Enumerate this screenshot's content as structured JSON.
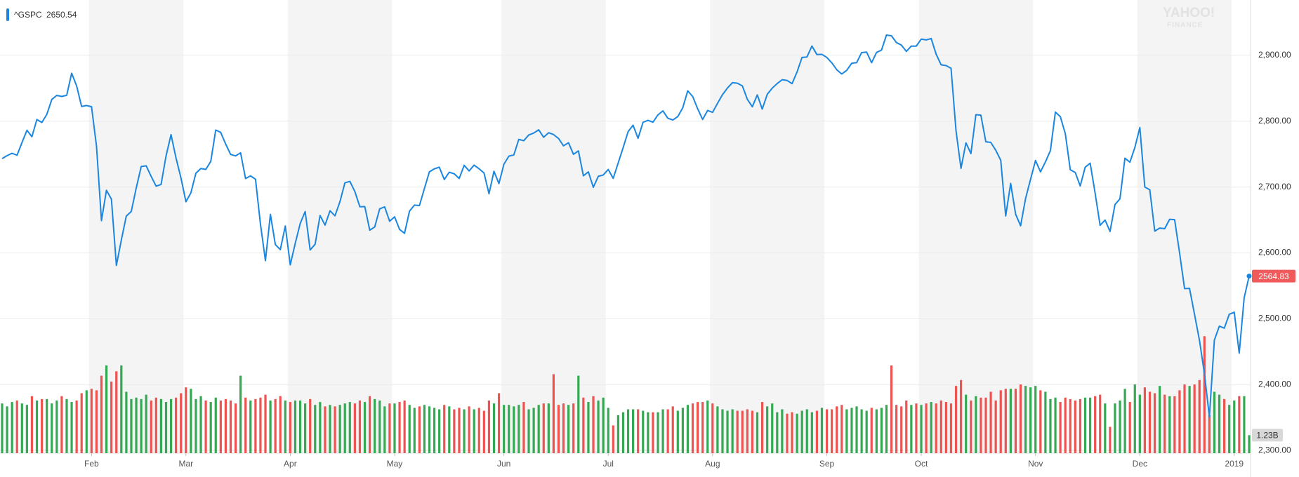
{
  "chart_data": {
    "type": "line",
    "legend_value": 2650.54,
    "watermark": [
      "YAHOO!",
      "FINANCE"
    ],
    "categories": [
      null,
      null,
      null,
      null,
      null,
      null,
      null,
      null,
      null,
      null,
      null,
      null,
      null,
      null,
      null,
      null,
      null,
      null,
      "Feb",
      null,
      null,
      null,
      null,
      null,
      null,
      null,
      null,
      null,
      null,
      null,
      null,
      null,
      null,
      null,
      null,
      null,
      null,
      "Mar",
      null,
      null,
      null,
      null,
      null,
      null,
      null,
      null,
      null,
      null,
      null,
      null,
      null,
      null,
      null,
      null,
      null,
      null,
      null,
      null,
      "Apr",
      null,
      null,
      null,
      null,
      null,
      null,
      null,
      null,
      null,
      null,
      null,
      null,
      null,
      null,
      null,
      null,
      null,
      null,
      null,
      null,
      "May",
      null,
      null,
      null,
      null,
      null,
      null,
      null,
      null,
      null,
      null,
      null,
      null,
      null,
      null,
      null,
      null,
      null,
      null,
      null,
      null,
      null,
      "Jun",
      null,
      null,
      null,
      null,
      null,
      null,
      null,
      null,
      null,
      null,
      null,
      null,
      null,
      null,
      null,
      null,
      null,
      null,
      null,
      null,
      "Jul",
      null,
      null,
      null,
      null,
      null,
      null,
      null,
      null,
      null,
      null,
      null,
      null,
      null,
      null,
      null,
      null,
      null,
      null,
      null,
      null,
      "Aug",
      null,
      null,
      null,
      null,
      null,
      null,
      null,
      null,
      null,
      null,
      null,
      null,
      null,
      null,
      null,
      null,
      null,
      null,
      null,
      null,
      null,
      null,
      "Sep",
      null,
      null,
      null,
      null,
      null,
      null,
      null,
      null,
      null,
      null,
      null,
      null,
      null,
      null,
      null,
      null,
      null,
      null,
      "Oct",
      null,
      null,
      null,
      null,
      null,
      null,
      null,
      null,
      null,
      null,
      null,
      null,
      null,
      null,
      null,
      null,
      null,
      null,
      null,
      null,
      null,
      null,
      "Nov",
      null,
      null,
      null,
      null,
      null,
      null,
      null,
      null,
      null,
      null,
      null,
      null,
      null,
      null,
      null,
      null,
      null,
      null,
      null,
      null,
      "Dec",
      null,
      null,
      null,
      null,
      null,
      null,
      null,
      null,
      null,
      null,
      null,
      null,
      null,
      null,
      null,
      null,
      null,
      null,
      "2019",
      null,
      null,
      null
    ],
    "series": [
      {
        "name": "^GSPC",
        "color": "#1a86e0",
        "values": [
          2743.15,
          2747.71,
          2751.29,
          2748.23,
          2767.56,
          2786.24,
          2776.42,
          2802.56,
          2798.03,
          2810.3,
          2832.97,
          2839.13,
          2837.54,
          2839.25,
          2872.87,
          2853.53,
          2822.43,
          2823.81,
          2821.98,
          2762.13,
          2648.94,
          2695.14,
          2681.66,
          2581.0,
          2619.55,
          2656.0,
          2662.94,
          2698.63,
          2731.2,
          2732.22,
          2716.26,
          2701.33,
          2703.96,
          2747.3,
          2779.6,
          2744.28,
          2713.83,
          2677.67,
          2691.25,
          2720.94,
          2728.12,
          2726.8,
          2738.97,
          2786.57,
          2783.02,
          2765.31,
          2749.48,
          2747.33,
          2752.01,
          2712.92,
          2716.94,
          2711.93,
          2643.69,
          2588.26,
          2658.55,
          2612.62,
          2605.0,
          2640.87,
          2581.88,
          2614.45,
          2644.69,
          2662.84,
          2604.47,
          2613.16,
          2656.87,
          2642.19,
          2663.99,
          2656.3,
          2677.84,
          2706.39,
          2708.64,
          2693.13,
          2670.14,
          2670.29,
          2634.56,
          2639.4,
          2666.94,
          2669.91,
          2648.05,
          2654.8,
          2635.67,
          2629.73,
          2663.42,
          2672.63,
          2671.92,
          2697.79,
          2723.07,
          2727.72,
          2730.13,
          2711.45,
          2722.46,
          2720.13,
          2712.97,
          2733.01,
          2724.44,
          2733.29,
          2727.76,
          2721.33,
          2689.86,
          2724.01,
          2705.27,
          2734.62,
          2746.87,
          2748.8,
          2772.35,
          2770.37,
          2779.03,
          2782.0,
          2786.85,
          2775.63,
          2782.49,
          2779.66,
          2773.75,
          2762.59,
          2767.32,
          2749.76,
          2754.88,
          2717.07,
          2723.06,
          2699.63,
          2716.31,
          2718.37,
          2726.71,
          2713.22,
          2736.61,
          2759.82,
          2784.17,
          2793.84,
          2774.02,
          2798.29,
          2801.31,
          2798.43,
          2809.55,
          2815.62,
          2804.49,
          2801.83,
          2806.98,
          2820.4,
          2846.07,
          2837.44,
          2818.82,
          2802.6,
          2816.29,
          2813.36,
          2827.22,
          2840.35,
          2850.4,
          2858.45,
          2857.7,
          2853.58,
          2833.28,
          2821.93,
          2839.96,
          2818.37,
          2840.69,
          2850.13,
          2857.05,
          2862.96,
          2861.82,
          2856.98,
          2874.69,
          2896.74,
          2897.52,
          2914.04,
          2901.13,
          2901.52,
          2896.72,
          2888.6,
          2878.05,
          2871.68,
          2877.13,
          2887.89,
          2888.92,
          2904.18,
          2904.98,
          2888.8,
          2904.31,
          2907.95,
          2930.75,
          2929.67,
          2919.37,
          2915.56,
          2905.97,
          2914.0,
          2913.98,
          2924.59,
          2923.43,
          2925.51,
          2901.61,
          2885.57,
          2884.43,
          2880.34,
          2785.68,
          2728.37,
          2767.13,
          2750.79,
          2809.92,
          2809.21,
          2768.78,
          2767.78,
          2755.88,
          2740.69,
          2656.1,
          2705.57,
          2658.69,
          2641.25,
          2682.63,
          2711.74,
          2740.37,
          2723.06,
          2738.31,
          2755.45,
          2813.89,
          2806.83,
          2781.01,
          2726.22,
          2722.18,
          2701.58,
          2730.2,
          2736.27,
          2690.73,
          2641.89,
          2649.93,
          2632.56,
          2673.45,
          2682.17,
          2743.79,
          2737.8,
          2760.17,
          2790.37,
          2700.06,
          2695.95,
          2633.08,
          2637.72,
          2636.78,
          2651.07,
          2650.54,
          2599.95,
          2545.94,
          2546.16,
          2506.96,
          2467.42,
          2416.62,
          2351.1,
          2467.7,
          2488.83,
          2485.74,
          2506.85,
          2510.03,
          2447.89,
          2531.94,
          2564.83
        ]
      }
    ],
    "last_value_color": "#f05a5a",
    "volume": {
      "up_color": "#35a853",
      "down_color": "#ef5350",
      "ylim": [
        0,
        31
      ],
      "last_label": "1.23B",
      "values": [
        3.4,
        3.2,
        3.5,
        3.6,
        3.4,
        3.3,
        3.9,
        3.6,
        3.7,
        3.7,
        3.4,
        3.6,
        3.9,
        3.7,
        3.5,
        3.6,
        4.1,
        4.3,
        4.4,
        4.3,
        5.3,
        6.0,
        4.9,
        5.6,
        6.0,
        4.2,
        3.7,
        3.8,
        3.7,
        4.0,
        3.6,
        3.8,
        3.7,
        3.5,
        3.7,
        3.8,
        4.1,
        4.5,
        4.4,
        3.7,
        3.9,
        3.6,
        3.5,
        3.8,
        3.6,
        3.7,
        3.6,
        3.4,
        5.3,
        3.8,
        3.6,
        3.7,
        3.8,
        4.0,
        3.6,
        3.7,
        3.9,
        3.6,
        3.5,
        3.6,
        3.6,
        3.4,
        3.7,
        3.3,
        3.5,
        3.2,
        3.3,
        3.2,
        3.3,
        3.4,
        3.5,
        3.4,
        3.6,
        3.5,
        3.9,
        3.7,
        3.6,
        3.2,
        3.4,
        3.4,
        3.5,
        3.6,
        3.3,
        3.1,
        3.2,
        3.3,
        3.2,
        3.1,
        3.0,
        3.3,
        3.2,
        3.0,
        3.1,
        3.0,
        3.2,
        3.0,
        3.1,
        2.9,
        3.6,
        3.4,
        4.1,
        3.3,
        3.3,
        3.2,
        3.3,
        3.5,
        3.0,
        3.1,
        3.3,
        3.4,
        3.4,
        5.4,
        3.3,
        3.4,
        3.3,
        3.4,
        5.3,
        3.8,
        3.5,
        3.9,
        3.6,
        3.8,
        3.1,
        1.9,
        2.6,
        2.8,
        3.0,
        3.0,
        3.0,
        2.9,
        2.8,
        2.8,
        2.8,
        3.0,
        3.0,
        3.2,
        2.9,
        3.1,
        3.3,
        3.4,
        3.5,
        3.5,
        3.6,
        3.4,
        3.2,
        3.0,
        2.9,
        3.0,
        2.9,
        2.9,
        3.0,
        2.9,
        2.8,
        3.5,
        3.2,
        3.4,
        2.8,
        3.0,
        2.7,
        2.8,
        2.7,
        2.9,
        3.0,
        2.8,
        2.9,
        3.1,
        3.0,
        3.0,
        3.2,
        3.3,
        3.0,
        3.1,
        3.2,
        3.0,
        2.9,
        3.1,
        3.0,
        3.1,
        3.3,
        6.0,
        3.3,
        3.2,
        3.6,
        3.3,
        3.4,
        3.3,
        3.4,
        3.5,
        3.4,
        3.6,
        3.5,
        3.4,
        4.6,
        5.0,
        4.0,
        3.6,
        3.9,
        3.8,
        3.8,
        4.2,
        3.6,
        4.3,
        4.4,
        4.4,
        4.4,
        4.7,
        4.6,
        4.5,
        4.6,
        4.3,
        4.2,
        3.7,
        3.8,
        3.5,
        3.8,
        3.7,
        3.6,
        3.7,
        3.8,
        3.8,
        3.9,
        4.0,
        3.4,
        1.8,
        3.4,
        3.6,
        4.4,
        3.5,
        4.7,
        4.0,
        4.5,
        4.2,
        4.1,
        4.6,
        4.0,
        3.9,
        3.9,
        4.3,
        4.7,
        4.6,
        4.7,
        5.0,
        8.0,
        2.6,
        4.2,
        4.0,
        3.7,
        3.3,
        3.6,
        3.9,
        3.9,
        1.23
      ]
    },
    "ylim": [
      2296,
      2984
    ],
    "yticks": [
      {
        "value": 2300,
        "label": "2,300.00"
      },
      {
        "value": 2400,
        "label": "2,400.00"
      },
      {
        "value": 2500,
        "label": "2,500.00"
      },
      {
        "value": 2600,
        "label": "2,600.00"
      },
      {
        "value": 2700,
        "label": "2,700.00"
      },
      {
        "value": 2800,
        "label": "2,800.00"
      },
      {
        "value": 2900,
        "label": "2,900.00"
      }
    ],
    "grid": true,
    "shade_color": "#f4f4f4"
  }
}
